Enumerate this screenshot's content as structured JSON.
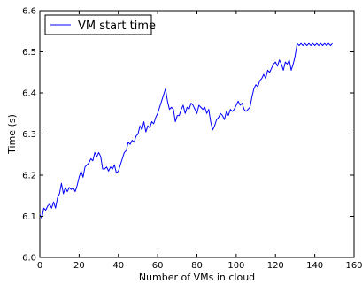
{
  "chart_data": {
    "type": "line",
    "title": "",
    "xlabel": "Number of VMs in cloud",
    "ylabel": "Time (s)",
    "xlim": [
      0,
      160
    ],
    "ylim": [
      6.0,
      6.6
    ],
    "xticks": [
      0,
      20,
      40,
      60,
      80,
      100,
      120,
      140,
      160
    ],
    "xtick_labels": [
      "0",
      "20",
      "40",
      "60",
      "80",
      "100",
      "120",
      "140",
      "160"
    ],
    "yticks": [
      6.0,
      6.1,
      6.2,
      6.3,
      6.4,
      6.5,
      6.6
    ],
    "ytick_labels": [
      "6.0",
      "6.1",
      "6.2",
      "6.3",
      "6.4",
      "6.5",
      "6.6"
    ],
    "grid": false,
    "legend_position": "top-left",
    "series": [
      {
        "name": "VM start time",
        "color": "#0000ff",
        "x": [
          0,
          1,
          2,
          3,
          4,
          5,
          6,
          7,
          8,
          9,
          10,
          11,
          12,
          13,
          14,
          15,
          16,
          17,
          18,
          19,
          20,
          21,
          22,
          23,
          24,
          25,
          26,
          27,
          28,
          29,
          30,
          31,
          32,
          33,
          34,
          35,
          36,
          37,
          38,
          39,
          40,
          41,
          42,
          43,
          44,
          45,
          46,
          47,
          48,
          49,
          50,
          51,
          52,
          53,
          54,
          55,
          56,
          57,
          58,
          59,
          60,
          61,
          62,
          63,
          64,
          65,
          66,
          67,
          68,
          69,
          70,
          71,
          72,
          73,
          74,
          75,
          76,
          77,
          78,
          79,
          80,
          81,
          82,
          83,
          84,
          85,
          86,
          87,
          88,
          89,
          90,
          91,
          92,
          93,
          94,
          95,
          96,
          97,
          98,
          99,
          100,
          101,
          102,
          103,
          104,
          105,
          106,
          107,
          108,
          109,
          110,
          111,
          112,
          113,
          114,
          115,
          116,
          117,
          118,
          119,
          120,
          121,
          122,
          123,
          124,
          125,
          126,
          127,
          128,
          129,
          130,
          131,
          132,
          133,
          134,
          135,
          136,
          137,
          138,
          139,
          140,
          141,
          142,
          143,
          144,
          145,
          146,
          147,
          148,
          149
        ],
        "y": [
          6.105,
          6.095,
          6.12,
          6.115,
          6.125,
          6.13,
          6.12,
          6.135,
          6.12,
          6.145,
          6.155,
          6.18,
          6.155,
          6.17,
          6.16,
          6.17,
          6.165,
          6.17,
          6.16,
          6.175,
          6.195,
          6.21,
          6.195,
          6.22,
          6.225,
          6.23,
          6.24,
          6.235,
          6.255,
          6.245,
          6.255,
          6.245,
          6.215,
          6.215,
          6.22,
          6.21,
          6.22,
          6.215,
          6.225,
          6.205,
          6.21,
          6.225,
          6.24,
          6.255,
          6.26,
          6.28,
          6.275,
          6.285,
          6.28,
          6.295,
          6.3,
          6.32,
          6.31,
          6.33,
          6.305,
          6.32,
          6.315,
          6.33,
          6.325,
          6.34,
          6.35,
          6.365,
          6.38,
          6.395,
          6.41,
          6.38,
          6.36,
          6.365,
          6.36,
          6.33,
          6.345,
          6.345,
          6.36,
          6.37,
          6.35,
          6.365,
          6.36,
          6.375,
          6.37,
          6.36,
          6.35,
          6.37,
          6.365,
          6.36,
          6.365,
          6.35,
          6.36,
          6.33,
          6.31,
          6.32,
          6.335,
          6.34,
          6.35,
          6.345,
          6.335,
          6.355,
          6.345,
          6.36,
          6.355,
          6.36,
          6.37,
          6.38,
          6.37,
          6.375,
          6.36,
          6.355,
          6.36,
          6.365,
          6.39,
          6.41,
          6.42,
          6.415,
          6.43,
          6.435,
          6.445,
          6.435,
          6.455,
          6.45,
          6.46,
          6.47,
          6.475,
          6.465,
          6.48,
          6.47,
          6.455,
          6.475,
          6.47,
          6.48,
          6.455,
          6.47,
          6.49,
          6.52,
          6.515,
          6.52,
          6.515,
          6.52,
          6.515,
          6.52,
          6.515,
          6.52,
          6.515,
          6.52,
          6.515,
          6.52,
          6.515,
          6.52,
          6.515,
          6.52,
          6.515,
          6.52
        ]
      }
    ]
  }
}
